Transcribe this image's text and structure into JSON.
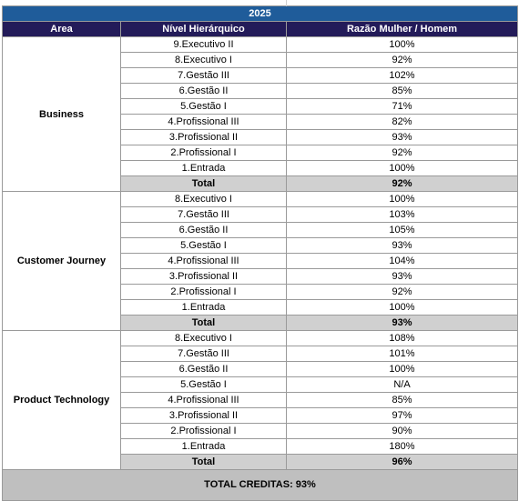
{
  "year": "2025",
  "headers": {
    "area": "Area",
    "level": "Nível Hierárquico",
    "ratio": "Razão Mulher / Homem"
  },
  "areas": [
    {
      "name": "Business",
      "rows": [
        {
          "level": "9.Executivo II",
          "ratio": "100%"
        },
        {
          "level": "8.Executivo I",
          "ratio": "92%"
        },
        {
          "level": "7.Gestão III",
          "ratio": "102%"
        },
        {
          "level": "6.Gestão II",
          "ratio": "85%"
        },
        {
          "level": "5.Gestão I",
          "ratio": "71%"
        },
        {
          "level": "4.Profissional III",
          "ratio": "82%"
        },
        {
          "level": "3.Profissional II",
          "ratio": "93%"
        },
        {
          "level": "2.Profissional I",
          "ratio": "92%"
        },
        {
          "level": "1.Entrada",
          "ratio": "100%"
        }
      ],
      "total_label": "Total",
      "total": "92%"
    },
    {
      "name": "Customer Journey",
      "rows": [
        {
          "level": "8.Executivo I",
          "ratio": "100%"
        },
        {
          "level": "7.Gestão III",
          "ratio": "103%"
        },
        {
          "level": "6.Gestão II",
          "ratio": "105%"
        },
        {
          "level": "5.Gestão I",
          "ratio": "93%"
        },
        {
          "level": "4.Profissional III",
          "ratio": "104%"
        },
        {
          "level": "3.Profissional II",
          "ratio": "93%"
        },
        {
          "level": "2.Profissional I",
          "ratio": "92%"
        },
        {
          "level": "1.Entrada",
          "ratio": "100%"
        }
      ],
      "total_label": "Total",
      "total": "93%"
    },
    {
      "name": "Product Technology",
      "rows": [
        {
          "level": "8.Executivo I",
          "ratio": "108%"
        },
        {
          "level": "7.Gestão III",
          "ratio": "101%"
        },
        {
          "level": "6.Gestão II",
          "ratio": "100%"
        },
        {
          "level": "5.Gestão I",
          "ratio": "N/A"
        },
        {
          "level": "4.Profissional III",
          "ratio": "85%"
        },
        {
          "level": "3.Profissional II",
          "ratio": "97%"
        },
        {
          "level": "2.Profissional I",
          "ratio": "90%"
        },
        {
          "level": "1.Entrada",
          "ratio": "180%"
        }
      ],
      "total_label": "Total",
      "total": "96%"
    }
  ],
  "grand_total": "TOTAL CREDITAS: 93%"
}
